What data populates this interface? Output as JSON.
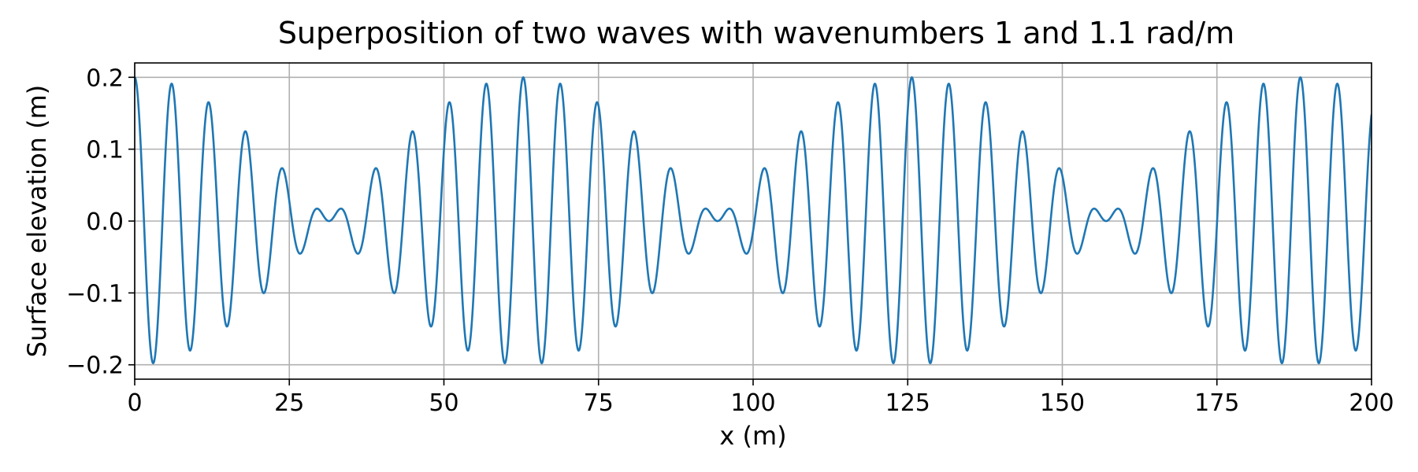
{
  "chart_data": {
    "type": "line",
    "title": "Superposition of two waves with wavenumbers 1 and 1.1 rad/m",
    "xlabel": "x (m)",
    "ylabel": "Surface elevation (m)",
    "xlim": [
      0,
      200
    ],
    "ylim": [
      -0.22,
      0.22
    ],
    "x_ticks": [
      0,
      25,
      50,
      75,
      100,
      125,
      150,
      175,
      200
    ],
    "x_tick_labels": [
      "0",
      "25",
      "50",
      "75",
      "100",
      "125",
      "150",
      "175",
      "200"
    ],
    "y_ticks": [
      -0.2,
      -0.1,
      0.0,
      0.1,
      0.2
    ],
    "y_tick_labels": [
      "−0.2",
      "−0.1",
      "0.0",
      "0.1",
      "0.2"
    ],
    "grid": true,
    "series": [
      {
        "color": "#1f77b4",
        "function": "0.1*cos(1.0*x) + 0.1*cos(1.1*x)",
        "k1": 1.0,
        "k2": 1.1,
        "amplitude": 0.1,
        "x_start": 0,
        "x_end": 200
      }
    ]
  }
}
